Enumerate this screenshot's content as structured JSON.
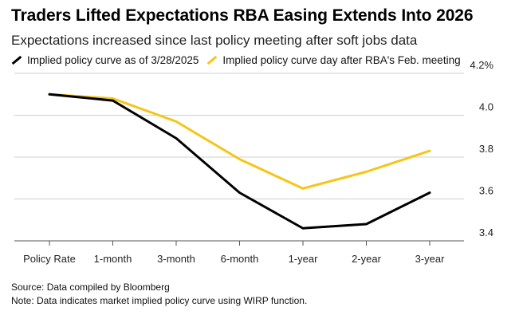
{
  "chart_data": {
    "type": "line",
    "title": "Traders Lifted Expectations RBA Easing Extends Into 2026",
    "subtitle": "Expectations increased since last policy meeting after soft jobs data",
    "categories": [
      "Policy Rate",
      "1-month",
      "3-month",
      "6-month",
      "1-year",
      "2-year",
      "3-year"
    ],
    "series": [
      {
        "name": "Implied policy curve as of 3/28/2025",
        "color": "#000000",
        "values": [
          4.1,
          4.07,
          3.89,
          3.63,
          3.46,
          3.48,
          3.63
        ]
      },
      {
        "name": "Implied policy curve day after RBA's Feb. meeting",
        "color": "#f5c518",
        "values": [
          4.1,
          4.08,
          3.97,
          3.79,
          3.65,
          3.73,
          3.83
        ]
      }
    ],
    "yticks": [
      "3.4",
      "3.6",
      "3.8",
      "4.0",
      "4.2%"
    ],
    "ytick_values": [
      3.4,
      3.6,
      3.8,
      4.0,
      4.2
    ],
    "ylim": [
      3.4,
      4.2
    ],
    "grid": true,
    "legend_position": "top-left",
    "xlabel": "",
    "ylabel": ""
  },
  "footer": {
    "source": "Source: Data compiled by Bloomberg",
    "note": "Note: Data indicates market implied policy curve using WIRP function."
  }
}
